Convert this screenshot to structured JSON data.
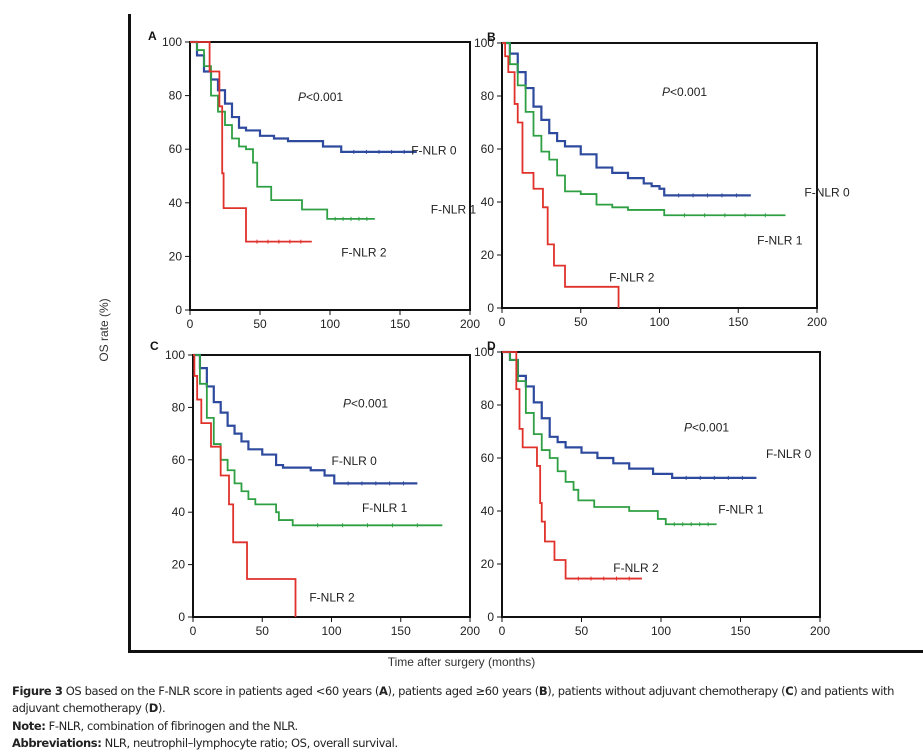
{
  "figure": {
    "ylabel": "OS rate (%)",
    "xlabel": "Time after surgery (months)",
    "caption": {
      "label": "Figure 3",
      "text_1": " OS based on the F-NLR score in patients aged <60 years (",
      "A": "A",
      "text_2": "), patients aged ≥60 years (",
      "B": "B",
      "text_3": "), patients without adjuvant chemotherapy (",
      "C": "C",
      "text_4": ") and patients with adjuvant chemotherapy (",
      "D": "D",
      "text_5": ")."
    },
    "note_label": "Note:",
    "note_text": " F-NLR, combination of fibrinogen and the NLR.",
    "abbrev_label": "Abbreviations:",
    "abbrev_text": " NLR, neutrophil–lymphocyte ratio; OS, overall survival."
  },
  "colors": {
    "F-NLR 0": "#2e4a9e",
    "F-NLR 1": "#2ea043",
    "F-NLR 2": "#e0312b"
  },
  "chart_data": [
    {
      "panel": "A",
      "type": "line",
      "subtitle": "Patients aged <60 years",
      "annotation": "P<0.001",
      "xlim": [
        0,
        200
      ],
      "ylim": [
        0,
        100
      ],
      "xticks": [
        0,
        50,
        100,
        150,
        200
      ],
      "yticks": [
        0,
        20,
        40,
        60,
        80,
        100
      ],
      "grid": false,
      "series": [
        {
          "name": "F-NLR 0",
          "x": [
            0,
            5,
            10,
            15,
            20,
            25,
            30,
            35,
            40,
            50,
            60,
            70,
            90,
            95,
            100,
            108,
            162
          ],
          "y": [
            100,
            95,
            89,
            86,
            82,
            77,
            72,
            68,
            67,
            65,
            64,
            63,
            63,
            61,
            61,
            59,
            59
          ]
        },
        {
          "name": "F-NLR 1",
          "x": [
            0,
            5,
            10,
            15,
            20,
            25,
            30,
            35,
            40,
            45,
            48,
            58,
            80,
            98,
            132
          ],
          "y": [
            100,
            97,
            91,
            80,
            74,
            69,
            64,
            61,
            60,
            55,
            46,
            41,
            37.5,
            34,
            34
          ]
        },
        {
          "name": "F-NLR 2",
          "x": [
            0,
            14,
            21,
            23,
            24,
            40,
            87
          ],
          "y": [
            100,
            89,
            76,
            51,
            38,
            25.5,
            25.5
          ]
        }
      ]
    },
    {
      "panel": "B",
      "type": "line",
      "subtitle": "Patients aged ≥60 years",
      "annotation": "P<0.001",
      "xlim": [
        0,
        200
      ],
      "ylim": [
        0,
        100
      ],
      "xticks": [
        0,
        50,
        100,
        150,
        200
      ],
      "yticks": [
        0,
        20,
        40,
        60,
        80,
        100
      ],
      "grid": false,
      "series": [
        {
          "name": "F-NLR 0",
          "x": [
            0,
            5,
            10,
            15,
            20,
            25,
            30,
            35,
            40,
            50,
            60,
            70,
            80,
            90,
            95,
            100,
            103,
            158
          ],
          "y": [
            100,
            96,
            89,
            83,
            76,
            71,
            66,
            63,
            61,
            58,
            53,
            51,
            49,
            47,
            46,
            45,
            42.5,
            42.5
          ]
        },
        {
          "name": "F-NLR 1",
          "x": [
            0,
            5,
            10,
            15,
            20,
            25,
            30,
            35,
            40,
            50,
            60,
            70,
            80,
            103,
            180
          ],
          "y": [
            100,
            92,
            84,
            74,
            65,
            59,
            56,
            50,
            44,
            43,
            39,
            38,
            37,
            35,
            35
          ]
        },
        {
          "name": "F-NLR 2",
          "x": [
            0,
            2,
            4,
            8,
            10,
            13,
            20,
            26,
            29,
            33,
            40,
            74,
            74
          ],
          "y": [
            100,
            95,
            89,
            77,
            70,
            51,
            45,
            38,
            24,
            16,
            8,
            8,
            0
          ]
        }
      ]
    },
    {
      "panel": "C",
      "type": "line",
      "subtitle": "Patients without adjuvant chemotherapy",
      "annotation": "P<0.001",
      "xlim": [
        0,
        200
      ],
      "ylim": [
        0,
        100
      ],
      "xticks": [
        0,
        50,
        100,
        150,
        200
      ],
      "yticks": [
        0,
        20,
        40,
        60,
        80,
        100
      ],
      "grid": false,
      "series": [
        {
          "name": "F-NLR 0",
          "x": [
            0,
            5,
            10,
            15,
            20,
            25,
            30,
            35,
            40,
            50,
            60,
            65,
            75,
            85,
            95,
            102,
            162
          ],
          "y": [
            100,
            95,
            88,
            82,
            78,
            73,
            70,
            67,
            64,
            62,
            58,
            57,
            57,
            56,
            54,
            51,
            51
          ]
        },
        {
          "name": "F-NLR 1",
          "x": [
            0,
            5,
            10,
            15,
            20,
            25,
            30,
            35,
            40,
            45,
            60,
            62,
            72,
            180
          ],
          "y": [
            100,
            89,
            76,
            66,
            60,
            56,
            51,
            48,
            45,
            43,
            40,
            37,
            35,
            35
          ]
        },
        {
          "name": "F-NLR 2",
          "x": [
            0,
            1,
            3,
            6,
            13,
            20,
            26,
            29,
            39,
            74,
            74
          ],
          "y": [
            100,
            92,
            83,
            74,
            65,
            54,
            43,
            28.5,
            14.5,
            14.5,
            0
          ]
        }
      ]
    },
    {
      "panel": "D",
      "type": "line",
      "subtitle": "Patients with adjuvant chemotherapy",
      "annotation": "P<0.001",
      "xlim": [
        0,
        200
      ],
      "ylim": [
        0,
        100
      ],
      "xticks": [
        0,
        50,
        100,
        150,
        200
      ],
      "yticks": [
        0,
        20,
        40,
        60,
        80,
        100
      ],
      "grid": false,
      "series": [
        {
          "name": "F-NLR 0",
          "x": [
            0,
            5,
            10,
            15,
            20,
            25,
            30,
            35,
            40,
            50,
            60,
            70,
            80,
            95,
            100,
            107,
            160
          ],
          "y": [
            100,
            97,
            91,
            87,
            81,
            75,
            68,
            66,
            64,
            62,
            60,
            58,
            56,
            54,
            54,
            52.5,
            52.5
          ]
        },
        {
          "name": "F-NLR 1",
          "x": [
            0,
            5,
            10,
            15,
            20,
            25,
            30,
            35,
            40,
            45,
            48,
            58,
            80,
            98,
            103,
            135
          ],
          "y": [
            100,
            97,
            89,
            77,
            69,
            63,
            60,
            55,
            51,
            48,
            44,
            41.5,
            40,
            37,
            35,
            35
          ]
        },
        {
          "name": "F-NLR 2",
          "x": [
            0,
            9,
            11,
            13,
            15,
            22,
            24,
            25,
            27,
            33,
            40,
            88
          ],
          "y": [
            100,
            86,
            71,
            64,
            64,
            57,
            43,
            36,
            28.5,
            21.5,
            14.5,
            14.5
          ]
        }
      ]
    }
  ]
}
